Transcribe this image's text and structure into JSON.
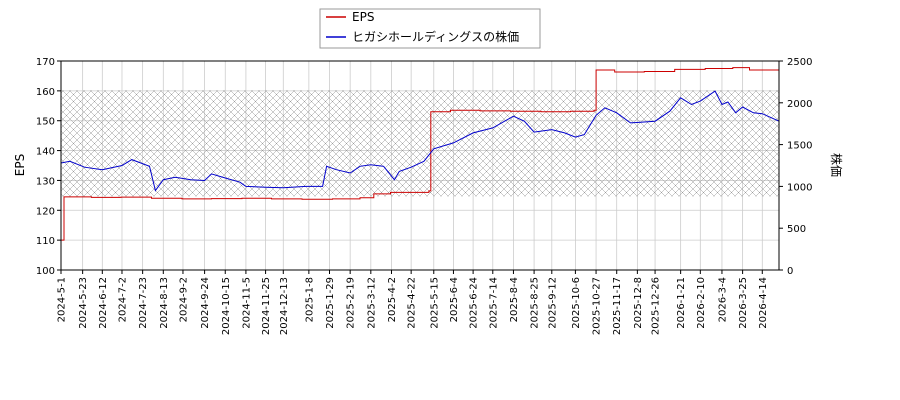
{
  "chart_data": {
    "type": "line",
    "legend": {
      "placement": "top-center",
      "entries": [
        {
          "label": "EPS",
          "color": "#cc0000"
        },
        {
          "label": "ヒガシホールディングスの株価",
          "color": "#0000cc"
        }
      ]
    },
    "ylabel_left": "EPS",
    "ylabel_right": "株価",
    "ylim_left": [
      100,
      170
    ],
    "ylim_right": [
      0,
      2500
    ],
    "yticks_left": [
      "100",
      "110",
      "120",
      "130",
      "140",
      "150",
      "160",
      "170"
    ],
    "yticks_right": [
      "0",
      "500",
      "1000",
      "1500",
      "2000",
      "2500"
    ],
    "xlim": [
      "2024-05-01",
      "2026-05-01"
    ],
    "xticks": [
      "2024-5-1",
      "2024-5-23",
      "2024-6-12",
      "2024-7-2",
      "2024-7-23",
      "2024-8-13",
      "2024-9-2",
      "2024-9-24",
      "2024-10-15",
      "2024-11-5",
      "2024-11-25",
      "2024-12-13",
      "2025-1-8",
      "2025-1-29",
      "2025-2-19",
      "2025-3-12",
      "2025-4-2",
      "2025-4-22",
      "2025-5-15",
      "2025-6-4",
      "2025-6-24",
      "2025-7-14",
      "2025-8-4",
      "2025-8-25",
      "2025-9-12",
      "2025-10-6",
      "2025-10-27",
      "2025-11-17",
      "2025-12-8",
      "2025-12-26",
      "2026-1-21",
      "2026-2-10",
      "2026-3-4",
      "2026-3-25",
      "2026-4-14"
    ],
    "grid": true,
    "price_band": [
      880,
      2150
    ],
    "series": [
      {
        "name": "EPS",
        "axis": "left",
        "color": "#cc0000",
        "points": [
          [
            "2024-05-01",
            110
          ],
          [
            "2024-05-03",
            110
          ],
          [
            "2024-05-04",
            124.5
          ],
          [
            "2024-06-01",
            124.3
          ],
          [
            "2024-07-01",
            124.4
          ],
          [
            "2024-08-01",
            124.0
          ],
          [
            "2024-09-01",
            123.8
          ],
          [
            "2024-10-01",
            123.9
          ],
          [
            "2024-11-01",
            124.0
          ],
          [
            "2024-12-01",
            123.8
          ],
          [
            "2025-01-01",
            123.7
          ],
          [
            "2025-02-01",
            123.8
          ],
          [
            "2025-03-01",
            124.2
          ],
          [
            "2025-03-15",
            125.5
          ],
          [
            "2025-04-01",
            126.0
          ],
          [
            "2025-05-10",
            126.5
          ],
          [
            "2025-05-12",
            153.0
          ],
          [
            "2025-06-01",
            153.5
          ],
          [
            "2025-07-01",
            153.3
          ],
          [
            "2025-08-01",
            153.2
          ],
          [
            "2025-09-01",
            153.0
          ],
          [
            "2025-10-01",
            153.2
          ],
          [
            "2025-10-25",
            153.5
          ],
          [
            "2025-10-27",
            167.0
          ],
          [
            "2025-11-15",
            166.3
          ],
          [
            "2025-12-15",
            166.5
          ],
          [
            "2026-01-15",
            167.2
          ],
          [
            "2026-02-15",
            167.5
          ],
          [
            "2026-03-15",
            167.8
          ],
          [
            "2026-04-01",
            167.0
          ],
          [
            "2026-05-01",
            166.8
          ]
        ]
      },
      {
        "name": "ヒガシホールディングスの株価",
        "axis": "right",
        "color": "#0000cc",
        "points": [
          [
            "2024-05-01",
            1280
          ],
          [
            "2024-05-10",
            1300
          ],
          [
            "2024-05-25",
            1230
          ],
          [
            "2024-06-12",
            1200
          ],
          [
            "2024-07-02",
            1250
          ],
          [
            "2024-07-12",
            1320
          ],
          [
            "2024-07-30",
            1240
          ],
          [
            "2024-08-05",
            950
          ],
          [
            "2024-08-13",
            1080
          ],
          [
            "2024-08-25",
            1110
          ],
          [
            "2024-09-10",
            1080
          ],
          [
            "2024-09-24",
            1070
          ],
          [
            "2024-10-01",
            1150
          ],
          [
            "2024-10-15",
            1100
          ],
          [
            "2024-10-30",
            1050
          ],
          [
            "2024-11-05",
            1000
          ],
          [
            "2024-11-25",
            990
          ],
          [
            "2024-12-13",
            985
          ],
          [
            "2025-01-05",
            1000
          ],
          [
            "2025-01-22",
            1000
          ],
          [
            "2025-01-26",
            1240
          ],
          [
            "2025-02-05",
            1200
          ],
          [
            "2025-02-19",
            1160
          ],
          [
            "2025-03-01",
            1240
          ],
          [
            "2025-03-12",
            1260
          ],
          [
            "2025-03-25",
            1240
          ],
          [
            "2025-04-05",
            1080
          ],
          [
            "2025-04-10",
            1180
          ],
          [
            "2025-04-22",
            1230
          ],
          [
            "2025-05-05",
            1300
          ],
          [
            "2025-05-15",
            1450
          ],
          [
            "2025-06-04",
            1520
          ],
          [
            "2025-06-24",
            1640
          ],
          [
            "2025-07-14",
            1700
          ],
          [
            "2025-08-04",
            1840
          ],
          [
            "2025-08-15",
            1780
          ],
          [
            "2025-08-25",
            1650
          ],
          [
            "2025-09-12",
            1680
          ],
          [
            "2025-09-25",
            1640
          ],
          [
            "2025-10-06",
            1590
          ],
          [
            "2025-10-15",
            1620
          ],
          [
            "2025-10-27",
            1850
          ],
          [
            "2025-11-05",
            1940
          ],
          [
            "2025-11-17",
            1880
          ],
          [
            "2025-12-01",
            1760
          ],
          [
            "2025-12-26",
            1780
          ],
          [
            "2026-01-10",
            1900
          ],
          [
            "2026-01-21",
            2060
          ],
          [
            "2026-02-01",
            1980
          ],
          [
            "2026-02-10",
            2020
          ],
          [
            "2026-02-25",
            2140
          ],
          [
            "2026-03-04",
            1980
          ],
          [
            "2026-03-10",
            2010
          ],
          [
            "2026-03-18",
            1880
          ],
          [
            "2026-03-25",
            1950
          ],
          [
            "2026-04-05",
            1880
          ],
          [
            "2026-04-14",
            1870
          ],
          [
            "2026-05-01",
            1780
          ]
        ]
      }
    ]
  }
}
